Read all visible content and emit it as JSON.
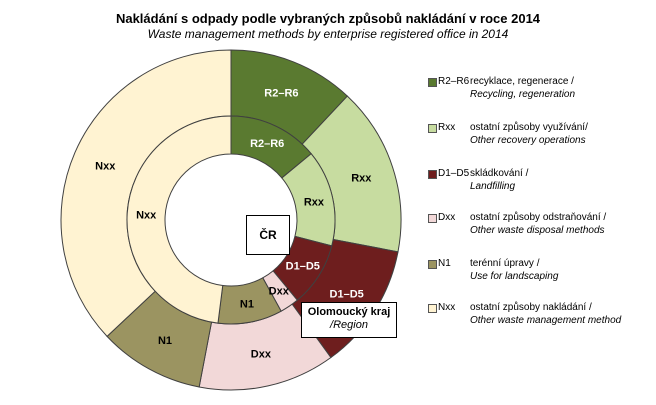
{
  "chart_data": {
    "type": "pie",
    "subtype": "double-ring donut",
    "title": "Nakládání s odpady podle vybraných  způsobů nakládání v roce 2014",
    "subtitle": "Waste management methods by enterprise registered office in 2014",
    "categories": [
      "R2–R6",
      "Rxx",
      "D1–D5",
      "Dxx",
      "N1",
      "Nxx"
    ],
    "category_labels": [
      "R2–R6",
      "Rxx",
      "D1–D5",
      "Dxx",
      "N1",
      "Nxx"
    ],
    "colors": [
      "#5a7a30",
      "#c7dca0",
      "#6e1e1e",
      "#f2d8d8",
      "#9b9461",
      "#fff3d2"
    ],
    "series": [
      {
        "name": "Olomoucký kraj",
        "ring": "outer",
        "values": [
          12,
          16,
          12,
          13,
          10,
          37
        ]
      },
      {
        "name": "ČR",
        "ring": "inner",
        "values": [
          14,
          15,
          10,
          3,
          10,
          48
        ]
      }
    ],
    "center_label": "ČR",
    "outer_label": {
      "name": "Olomoucký kraj",
      "sub": "/Region"
    }
  },
  "legend": [
    {
      "code": "R2–R6",
      "cz": "recyklace, regenerace /",
      "en": "Recycling, regeneration"
    },
    {
      "code": "Rxx",
      "cz": "ostatní způsoby využívání/",
      "en": "Other recovery operations"
    },
    {
      "code": "D1–D5",
      "cz": "skládkování /",
      "en": "Landfilling"
    },
    {
      "code": "Dxx",
      "cz": "ostatní způsoby odstraňování /",
      "en": "Other waste disposal methods"
    },
    {
      "code": "N1",
      "cz": "terénní úpravy /",
      "en": "Use for landscaping"
    },
    {
      "code": "Nxx",
      "cz": "ostatní způsoby nakládání /",
      "en": "Other waste management method"
    }
  ]
}
